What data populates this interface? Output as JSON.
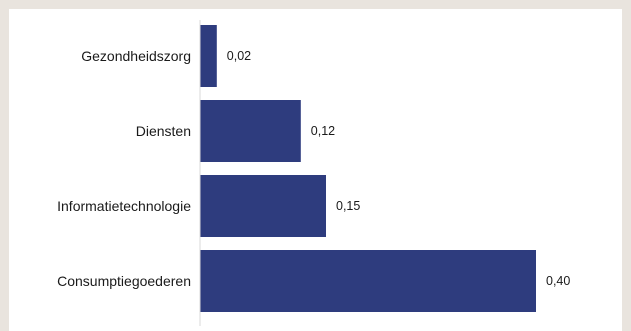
{
  "chart_data": {
    "type": "bar",
    "orientation": "horizontal",
    "categories": [
      "Gezondheidszorg",
      "Diensten",
      "Informatietechnologie",
      "Consumptiegoederen"
    ],
    "values": [
      0.02,
      0.12,
      0.15,
      0.4
    ],
    "value_labels": [
      "0,02",
      "0,12",
      "0,15",
      "0,40"
    ],
    "xlim": [
      0,
      0.4
    ],
    "grid": false,
    "bar_color": "#2e3c7e"
  }
}
